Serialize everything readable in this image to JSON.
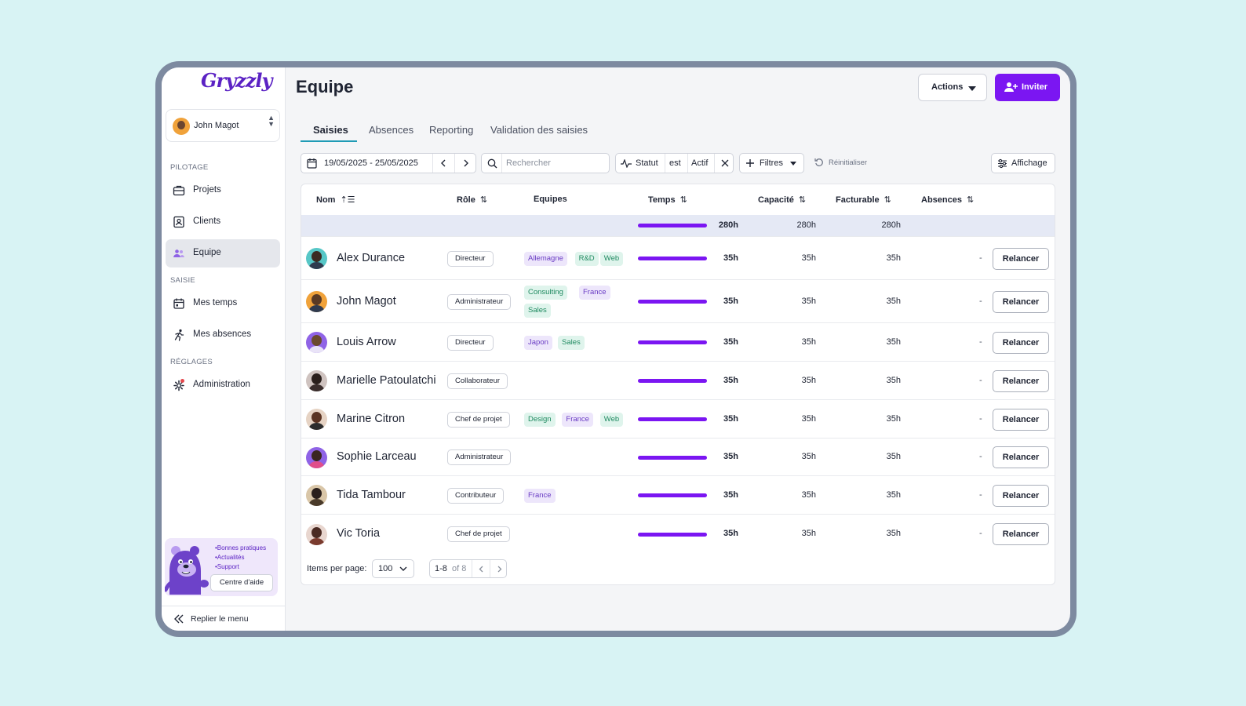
{
  "app": {
    "logo": "Gryzzly"
  },
  "user": {
    "name": "John Magot"
  },
  "sidebar": {
    "sections": [
      {
        "label": "PILOTAGE",
        "items": [
          {
            "label": "Projets",
            "icon": "briefcase-icon"
          },
          {
            "label": "Clients",
            "icon": "contact-card-icon"
          },
          {
            "label": "Equipe",
            "icon": "team-icon",
            "active": true
          }
        ]
      },
      {
        "label": "SAISIE",
        "items": [
          {
            "label": "Mes temps",
            "icon": "calendar-icon"
          },
          {
            "label": "Mes absences",
            "icon": "running-person-icon"
          }
        ]
      },
      {
        "label": "RÉGLAGES",
        "items": [
          {
            "label": "Administration",
            "icon": "gear-icon",
            "badge": true
          }
        ]
      }
    ],
    "help": {
      "bullets": [
        "•Bonnes pratiques",
        "•Actualités",
        "•Support"
      ],
      "button": "Centre d'aide"
    },
    "collapse": "Replier le menu"
  },
  "header": {
    "title": "Equipe",
    "actions_label": "Actions",
    "invite_label": "Inviter"
  },
  "tabs": [
    {
      "label": "Saisies",
      "active": true
    },
    {
      "label": "Absences"
    },
    {
      "label": "Reporting"
    },
    {
      "label": "Validation des saisies"
    }
  ],
  "toolbar": {
    "date_range": "19/05/2025 - 25/05/2025",
    "search_placeholder": "Rechercher",
    "filter_status": {
      "field": "Statut",
      "op": "est",
      "value": "Actif"
    },
    "filters_label": "Filtres",
    "reset_label": "Réinitialiser",
    "display_label": "Affichage"
  },
  "table": {
    "columns": {
      "nom": "Nom",
      "role": "Rôle",
      "equipes": "Equipes",
      "temps": "Temps",
      "capacite": "Capacité",
      "facturable": "Facturable",
      "absences": "Absences"
    },
    "totals": {
      "temps": "280h",
      "capacite": "280h",
      "facturable": "280h"
    },
    "action_label": "Relancer",
    "rows": [
      {
        "name": "Alex Durance",
        "role": "Directeur",
        "tags": [
          "Allemagne",
          "R&D",
          "Web"
        ],
        "temps": "35h",
        "capacite": "35h",
        "facturable": "35h",
        "absences": "-"
      },
      {
        "name": "John Magot",
        "role": "Administrateur",
        "tags": [
          "Consulting",
          "France",
          "Sales"
        ],
        "temps": "35h",
        "capacite": "35h",
        "facturable": "35h",
        "absences": "-"
      },
      {
        "name": "Louis Arrow",
        "role": "Directeur",
        "tags": [
          "Japon",
          "Sales"
        ],
        "temps": "35h",
        "capacite": "35h",
        "facturable": "35h",
        "absences": "-"
      },
      {
        "name": "Marielle Patoulatchi",
        "role": "Collaborateur",
        "tags": [],
        "temps": "35h",
        "capacite": "35h",
        "facturable": "35h",
        "absences": "-"
      },
      {
        "name": "Marine Citron",
        "role": "Chef de projet",
        "tags": [
          "Design",
          "France",
          "Web"
        ],
        "temps": "35h",
        "capacite": "35h",
        "facturable": "35h",
        "absences": "-"
      },
      {
        "name": "Sophie Larceau",
        "role": "Administrateur",
        "tags": [],
        "temps": "35h",
        "capacite": "35h",
        "facturable": "35h",
        "absences": "-"
      },
      {
        "name": "Tida Tambour",
        "role": "Contributeur",
        "tags": [
          "France"
        ],
        "temps": "35h",
        "capacite": "35h",
        "facturable": "35h",
        "absences": "-"
      },
      {
        "name": "Vic Toria",
        "role": "Chef de projet",
        "tags": [],
        "temps": "35h",
        "capacite": "35h",
        "facturable": "35h",
        "absences": "-"
      }
    ]
  },
  "pagination": {
    "label": "Items per page:",
    "per_page": "100",
    "range": "1-8",
    "of": "of 8"
  },
  "colors": {
    "accent": "#7b16f2",
    "tab_underline": "#1f9bb5",
    "tag_purple_bg": "#ede6fb",
    "tag_green_bg": "#dff4ec",
    "frame": "#7d8aa0",
    "background": "#d8f3f4"
  }
}
